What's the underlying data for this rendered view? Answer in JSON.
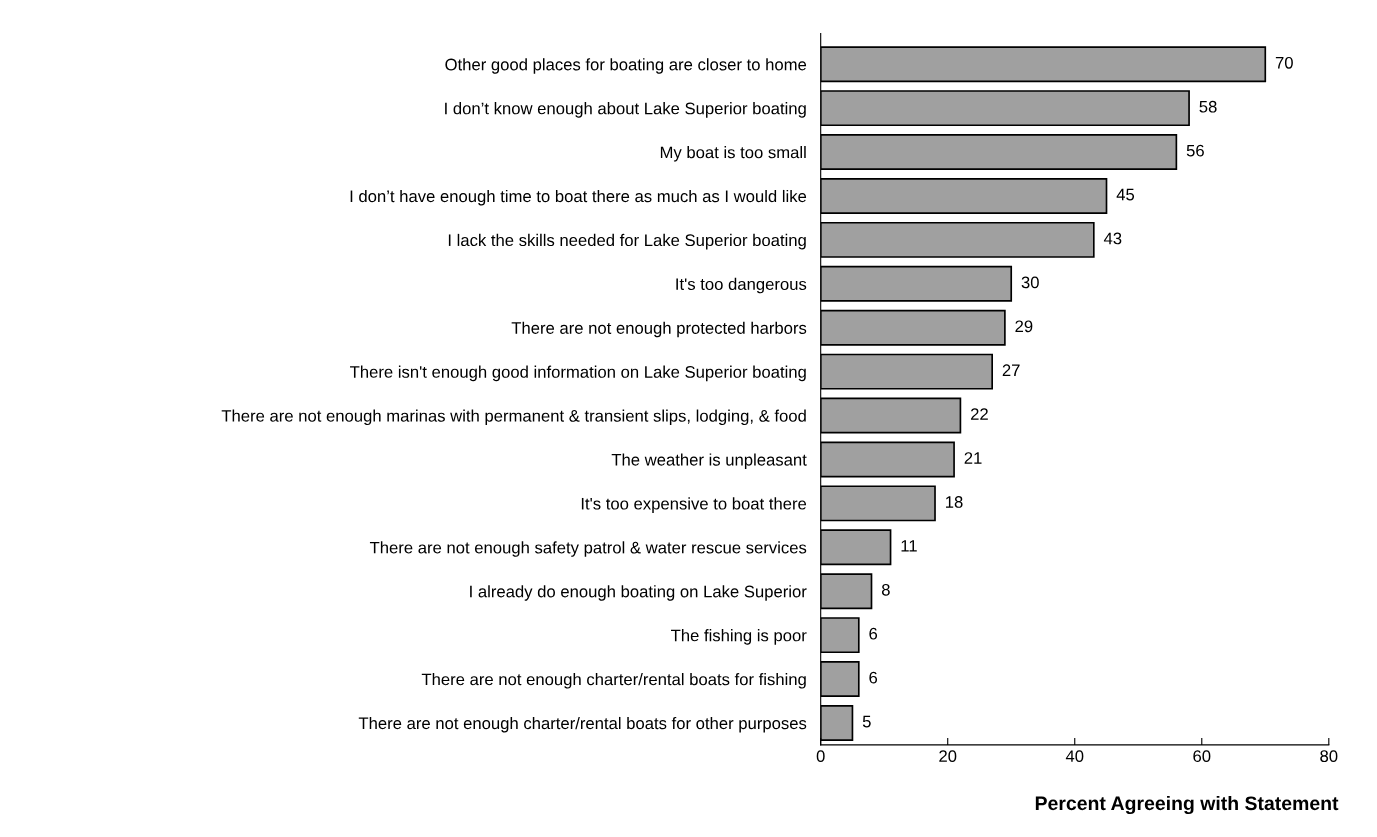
{
  "chart_data": {
    "type": "bar",
    "orientation": "horizontal",
    "xlabel": "Percent Agreeing with Statement",
    "categories": [
      "Other good places for boating are closer to home",
      "I don’t know enough about Lake Superior boating",
      "My boat is too small",
      "I don’t have enough time to boat there as much as I would like",
      "I lack the skills needed for Lake Superior boating",
      "It's too dangerous",
      "There are not enough protected harbors",
      "There isn't enough good information on Lake Superior boating",
      "There are not enough marinas with permanent & transient slips, lodging, & food",
      "The weather is unpleasant",
      "It's too expensive to boat there",
      "There are not enough safety patrol & water rescue services",
      "I already do enough boating on Lake Superior",
      "The fishing is poor",
      "There are not enough charter/rental boats for fishing",
      "There are not enough charter/rental boats for other purposes"
    ],
    "values": [
      70,
      58,
      56,
      45,
      43,
      30,
      29,
      27,
      22,
      21,
      18,
      11,
      8,
      6,
      6,
      5
    ],
    "color": "#a0a0a0",
    "data_labels": true,
    "xlim": [
      0,
      80
    ],
    "xticks": [
      0,
      20,
      40,
      60,
      80
    ],
    "grid": false,
    "legend": false
  }
}
